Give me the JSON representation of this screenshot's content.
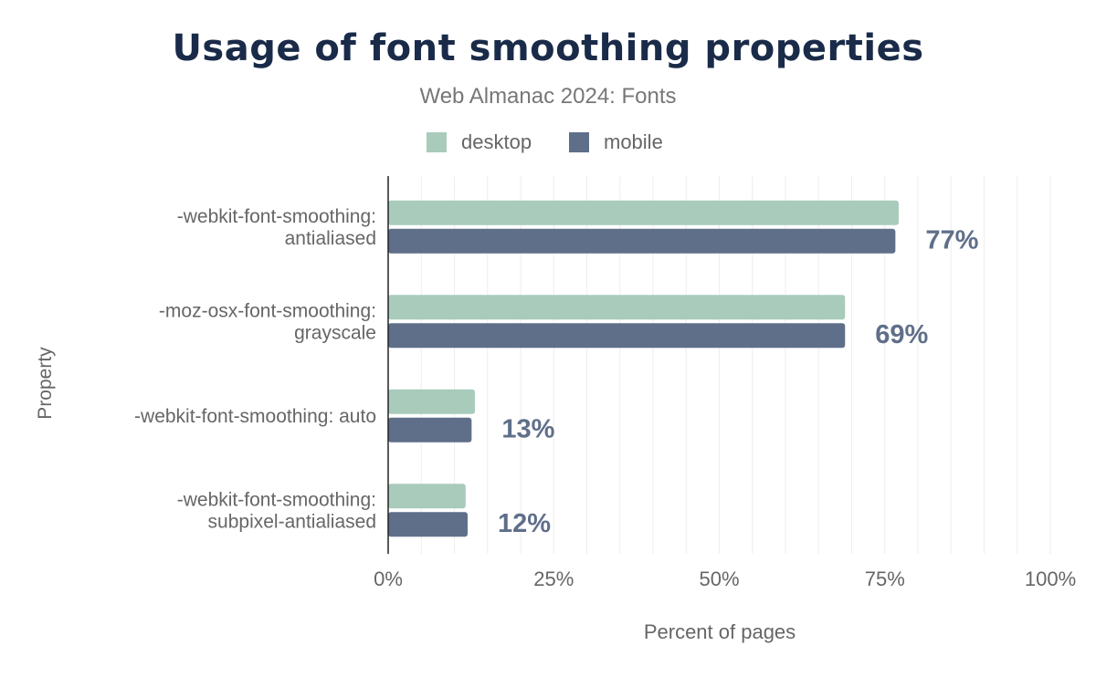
{
  "chart_data": {
    "type": "bar",
    "orientation": "horizontal",
    "title": "Usage of font smoothing properties",
    "subtitle": "Web Almanac 2024: Fonts",
    "xlabel": "Percent of pages",
    "ylabel": "Property",
    "xlim": [
      0,
      100
    ],
    "x_ticks": [
      "0%",
      "25%",
      "50%",
      "75%",
      "100%"
    ],
    "grid": true,
    "legend_position": "top",
    "categories": [
      [
        "-webkit-font-smoothing:",
        "antialiased"
      ],
      [
        "-moz-osx-font-smoothing:",
        "grayscale"
      ],
      [
        "-webkit-font-smoothing: auto"
      ],
      [
        "-webkit-font-smoothing:",
        "subpixel-antialiased"
      ]
    ],
    "series": [
      {
        "name": "desktop",
        "color": "#a8cbbb",
        "values": [
          77.1,
          69.0,
          13.1,
          11.7
        ]
      },
      {
        "name": "mobile",
        "color": "#5f6f8a",
        "values": [
          76.6,
          69.0,
          12.6,
          12.0
        ]
      }
    ],
    "data_labels": [
      "77%",
      "69%",
      "13%",
      "12%"
    ]
  }
}
